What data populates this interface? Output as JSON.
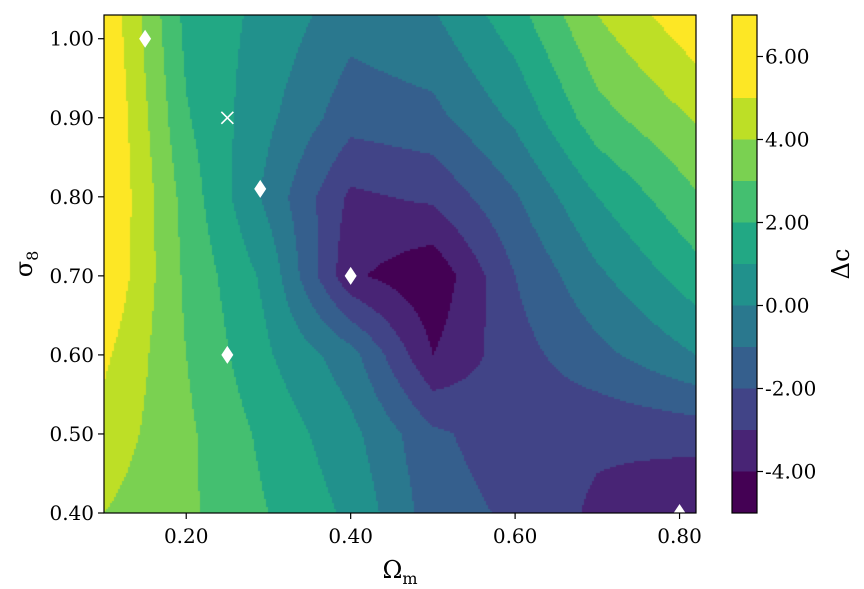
{
  "chart_data": {
    "type": "heatmap",
    "subtype": "filled-contour",
    "xlabel": "Ωm",
    "ylabel": "σ8",
    "colorbar_label": "Δc",
    "xlim": [
      0.1,
      0.82
    ],
    "ylim": [
      0.4,
      1.03
    ],
    "x_ticks": [
      0.2,
      0.4,
      0.6,
      0.8
    ],
    "x_tick_labels": [
      "0.20",
      "0.40",
      "0.60",
      "0.80"
    ],
    "y_ticks": [
      0.4,
      0.5,
      0.6,
      0.7,
      0.8,
      0.9,
      1.0
    ],
    "y_tick_labels": [
      "0.40",
      "0.50",
      "0.60",
      "0.70",
      "0.80",
      "0.90",
      "1.00"
    ],
    "colorbar_range": [
      -5,
      7
    ],
    "colorbar_ticks": [
      -4,
      -2,
      0,
      2,
      4,
      6
    ],
    "colorbar_tick_labels": [
      "-4.00",
      "-2.00",
      "0.00",
      "2.00",
      "4.00",
      "6.00"
    ],
    "levels": [
      -5,
      -4,
      -3,
      -2,
      -1,
      0,
      1,
      2,
      3,
      4,
      5,
      6,
      7
    ],
    "level_colors": [
      "#440154",
      "#482475",
      "#414487",
      "#355f8d",
      "#2a788e",
      "#21918c",
      "#22a884",
      "#44bf70",
      "#7ad151",
      "#bddf26",
      "#fde725",
      "#fde725"
    ],
    "field_grid": {
      "x": [
        0.1,
        0.2,
        0.3,
        0.4,
        0.5,
        0.6,
        0.7,
        0.82
      ],
      "y": [
        0.4,
        0.5,
        0.6,
        0.7,
        0.8,
        0.9,
        1.03
      ],
      "z": [
        [
          4.0,
          3.2,
          2.0,
          0.8,
          -1.5,
          -2.2,
          -3.2,
          -4.0
        ],
        [
          4.6,
          3.2,
          1.7,
          0.3,
          -1.8,
          -2.6,
          -2.8,
          -2.6
        ],
        [
          5.2,
          3.0,
          1.1,
          -0.6,
          -4.0,
          -2.4,
          -1.3,
          0.0
        ],
        [
          6.0,
          2.8,
          0.7,
          -3.8,
          -4.8,
          -2.0,
          -0.2,
          1.6
        ],
        [
          6.2,
          2.6,
          -0.3,
          -3.2,
          -2.8,
          -1.1,
          1.0,
          2.9
        ],
        [
          6.2,
          2.1,
          0.2,
          -1.6,
          -1.3,
          0.2,
          2.6,
          4.1
        ],
        [
          5.9,
          1.7,
          0.7,
          -0.6,
          -0.1,
          1.6,
          4.0,
          5.8
        ]
      ]
    },
    "markers": [
      {
        "shape": "diamond",
        "x": 0.15,
        "y": 1.0
      },
      {
        "shape": "x",
        "x": 0.25,
        "y": 0.9
      },
      {
        "shape": "diamond",
        "x": 0.29,
        "y": 0.81
      },
      {
        "shape": "diamond",
        "x": 0.4,
        "y": 0.7
      },
      {
        "shape": "diamond",
        "x": 0.25,
        "y": 0.6
      },
      {
        "shape": "diamond",
        "x": 0.8,
        "y": 0.4
      }
    ],
    "marker_color": "#ffffff"
  }
}
